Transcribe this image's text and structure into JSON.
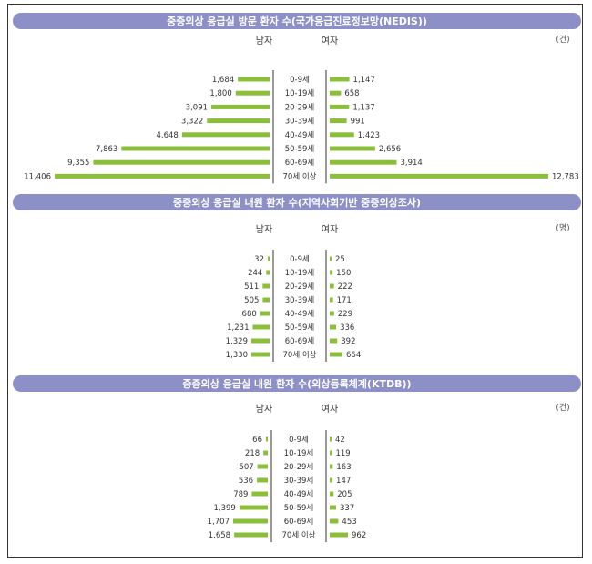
{
  "colors": {
    "bar": "#8bbf3a",
    "banner": "#8d8fc7",
    "axis": "#555555"
  },
  "chart_data": [
    {
      "type": "bar",
      "orientation": "population-pyramid",
      "title": "중증외상 응급실 방문 환자 수(국가응급진료정보망(NEDIS))",
      "left_label": "남자",
      "right_label": "여자",
      "unit": "(건)",
      "categories": [
        "0-9세",
        "10-19세",
        "20-29세",
        "30-39세",
        "40-49세",
        "50-59세",
        "60-69세",
        "70세 이상"
      ],
      "series": [
        {
          "name": "남자",
          "values": [
            1684,
            1800,
            3091,
            3322,
            4648,
            7863,
            9355,
            11406
          ],
          "labels": [
            "1,684",
            "1,800",
            "3,091",
            "3,322",
            "4,648",
            "7,863",
            "9,355",
            "11,406"
          ]
        },
        {
          "name": "여자",
          "values": [
            1147,
            658,
            1137,
            991,
            1423,
            2656,
            3914,
            12783
          ],
          "labels": [
            "1,147",
            "658",
            "1,137",
            "991",
            "1,423",
            "2,656",
            "3,914",
            "12,783"
          ]
        }
      ]
    },
    {
      "type": "bar",
      "orientation": "population-pyramid",
      "title": "중증외상 응급실 내원 환자 수(지역사회기반 중증외상조사)",
      "left_label": "남자",
      "right_label": "여자",
      "unit": "(명)",
      "categories": [
        "0-9세",
        "10-19세",
        "20-29세",
        "30-39세",
        "40-49세",
        "50-59세",
        "60-69세",
        "70세 이상"
      ],
      "series": [
        {
          "name": "남자",
          "values": [
            32,
            244,
            511,
            505,
            680,
            1231,
            1329,
            1330
          ],
          "labels": [
            "32",
            "244",
            "511",
            "505",
            "680",
            "1,231",
            "1,329",
            "1,330"
          ]
        },
        {
          "name": "여자",
          "values": [
            25,
            150,
            222,
            171,
            229,
            336,
            392,
            664
          ],
          "labels": [
            "25",
            "150",
            "222",
            "171",
            "229",
            "336",
            "392",
            "664"
          ]
        }
      ]
    },
    {
      "type": "bar",
      "orientation": "population-pyramid",
      "title": "중증외상 응급실 내원 환자 수(외상등록체계(KTDB))",
      "left_label": "남자",
      "right_label": "여자",
      "unit": "(건)",
      "categories": [
        "0-9세",
        "10-19세",
        "20-29세",
        "30-39세",
        "40-49세",
        "50-59세",
        "60-69세",
        "70세 이상"
      ],
      "series": [
        {
          "name": "남자",
          "values": [
            66,
            218,
            507,
            536,
            789,
            1399,
            1707,
            1658
          ],
          "labels": [
            "66",
            "218",
            "507",
            "536",
            "789",
            "1,399",
            "1,707",
            "1,658"
          ]
        },
        {
          "name": "여자",
          "values": [
            42,
            119,
            163,
            147,
            205,
            337,
            453,
            962
          ],
          "labels": [
            "42",
            "119",
            "163",
            "147",
            "205",
            "337",
            "453",
            "962"
          ]
        }
      ]
    }
  ]
}
